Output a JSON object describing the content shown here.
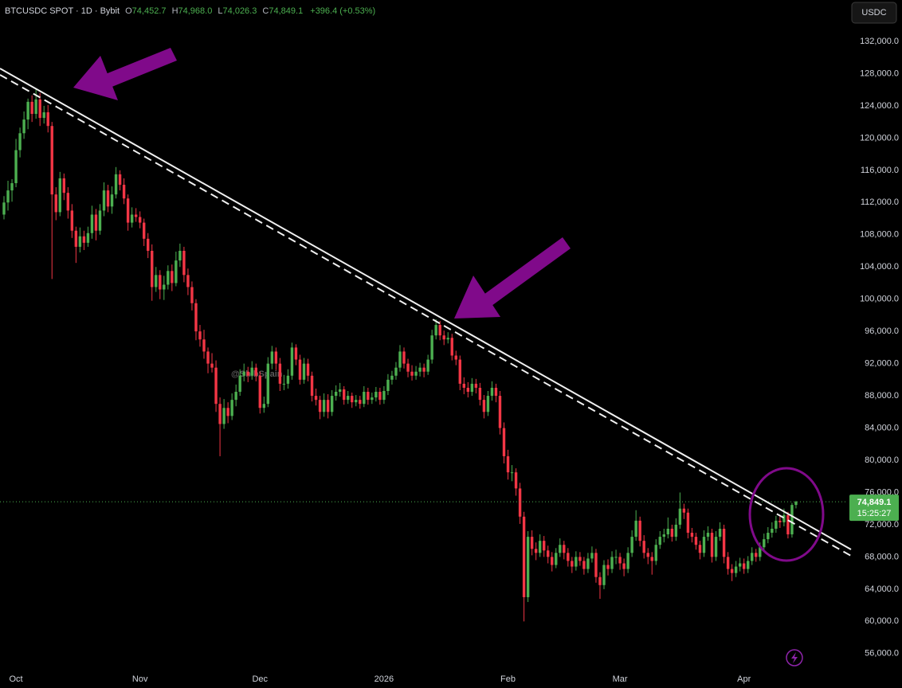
{
  "chart_data": {
    "type": "candlestick",
    "header": {
      "symbol": "BTCUSDC SPOT · 1D · Bybit",
      "o_label": "O",
      "o": "74,452.7",
      "h_label": "H",
      "h": "74,968.0",
      "l_label": "L",
      "l": "74,026.3",
      "c_label": "C",
      "c": "74,849.1",
      "change": "+396.4 (+0.53%)"
    },
    "currency": "USDC",
    "watermark": "@ShibSpain",
    "countdown": "15:25:27",
    "last_price": {
      "value": 74849.1,
      "label": "74,849.1"
    },
    "up_color": "#4caf50",
    "down_color": "#f23645",
    "grid": false,
    "ylim": [
      54100,
      137140
    ],
    "yticks": [
      {
        "value": 56000,
        "label": "56,000.0"
      },
      {
        "value": 60000,
        "label": "60,000.0"
      },
      {
        "value": 64000,
        "label": "64,000.0"
      },
      {
        "value": 68000,
        "label": "68,000.0"
      },
      {
        "value": 72000,
        "label": "72,000.0"
      },
      {
        "value": 76000,
        "label": "76,000.0"
      },
      {
        "value": 80000,
        "label": "80,000.0"
      },
      {
        "value": 84000,
        "label": "84,000.0"
      },
      {
        "value": 88000,
        "label": "88,000.0"
      },
      {
        "value": 92000,
        "label": "92,000.0"
      },
      {
        "value": 96000,
        "label": "96,000.0"
      },
      {
        "value": 100000,
        "label": "100,000.0"
      },
      {
        "value": 104000,
        "label": "104,000.0"
      },
      {
        "value": 108000,
        "label": "108,000.0"
      },
      {
        "value": 112000,
        "label": "112,000.0"
      },
      {
        "value": 116000,
        "label": "116,000.0"
      },
      {
        "value": 120000,
        "label": "120,000.0"
      },
      {
        "value": 124000,
        "label": "124,000.0"
      },
      {
        "value": 128000,
        "label": "128,000.0"
      },
      {
        "value": 132000,
        "label": "132,000.0"
      }
    ],
    "categories": [
      null,
      null,
      null,
      "Oct",
      null,
      null,
      null,
      null,
      null,
      null,
      null,
      null,
      null,
      null,
      null,
      null,
      null,
      null,
      null,
      null,
      null,
      null,
      null,
      null,
      null,
      null,
      null,
      null,
      null,
      null,
      null,
      null,
      null,
      null,
      "Nov",
      null,
      null,
      null,
      null,
      null,
      null,
      null,
      null,
      null,
      null,
      null,
      null,
      null,
      null,
      null,
      null,
      null,
      null,
      null,
      null,
      null,
      null,
      null,
      null,
      null,
      null,
      null,
      null,
      null,
      "Dec",
      null,
      null,
      null,
      null,
      null,
      null,
      null,
      null,
      null,
      null,
      null,
      null,
      null,
      null,
      null,
      null,
      null,
      null,
      null,
      null,
      null,
      null,
      null,
      null,
      null,
      null,
      null,
      null,
      null,
      null,
      "2026",
      null,
      null,
      null,
      null,
      null,
      null,
      null,
      null,
      null,
      null,
      null,
      null,
      null,
      null,
      null,
      null,
      null,
      null,
      null,
      null,
      null,
      null,
      null,
      null,
      null,
      null,
      null,
      null,
      null,
      null,
      "Feb",
      null,
      null,
      null,
      null,
      null,
      null,
      null,
      null,
      null,
      null,
      null,
      null,
      null,
      null,
      null,
      null,
      null,
      null,
      null,
      null,
      null,
      null,
      null,
      null,
      null,
      null,
      null,
      "Mar",
      null,
      null,
      null,
      null,
      null,
      null,
      null,
      null,
      null,
      null,
      null,
      null,
      null,
      null,
      null,
      null,
      null,
      null,
      null,
      null,
      null,
      null,
      null,
      null,
      null,
      null,
      null,
      null,
      null,
      null,
      "Apr",
      null,
      null,
      null,
      null,
      null,
      null,
      null,
      null,
      null,
      null,
      null,
      null,
      null
    ],
    "open": [
      110500,
      112000,
      113500,
      114400,
      118500,
      120600,
      122300,
      124500,
      123000,
      124800,
      122500,
      123200,
      121500,
      113000,
      110800,
      115000,
      113200,
      111000,
      108500,
      106500,
      107800,
      107000,
      108200,
      110500,
      108500,
      111000,
      113500,
      111500,
      113000,
      115500,
      114200,
      112500,
      109500,
      110500,
      110200,
      109500,
      107500,
      106000,
      101500,
      103000,
      101200,
      101800,
      103500,
      102000,
      104800,
      106000,
      103000,
      101500,
      99500,
      96000,
      95000,
      93500,
      92000,
      91500,
      87000,
      84500,
      86500,
      85500,
      87500,
      88500,
      90500,
      91000,
      90500,
      91500,
      90500,
      86500,
      87000,
      92000,
      93500,
      92000,
      89500,
      89500,
      90500,
      94000,
      92500,
      90000,
      92000,
      90500,
      88000,
      87500,
      86000,
      87500,
      86000,
      88000,
      88500,
      88800,
      87500,
      88000,
      87200,
      87500,
      87000,
      88500,
      87500,
      87800,
      88500,
      87500,
      88600,
      90000,
      90500,
      91500,
      93500,
      92000,
      91000,
      90500,
      91000,
      91500,
      91000,
      92500,
      95500,
      96800,
      95500,
      95000,
      95200,
      93000,
      92500,
      89500,
      89000,
      88500,
      89500,
      89000,
      87500,
      86000,
      88000,
      89000,
      88000,
      84000,
      80500,
      78500,
      78500,
      76500,
      73000,
      63000,
      70500,
      69000,
      68500,
      70000,
      68800,
      68000,
      67000,
      68500,
      69500,
      68500,
      67500,
      66800,
      68000,
      67500,
      66500,
      67800,
      68500,
      65500,
      64500,
      67000,
      66500,
      68000,
      68000,
      67200,
      66500,
      68500,
      70500,
      72500,
      70000,
      68500,
      68000,
      67500,
      69500,
      70500,
      70800,
      71500,
      70500,
      72000,
      74000,
      73500,
      71000,
      70500,
      69500,
      68500,
      70500,
      71000,
      68000,
      70500,
      71500,
      68000,
      66500,
      66000,
      66800,
      67200,
      66500,
      67500,
      68500,
      68000,
      69200,
      70200,
      71000,
      71500,
      72500,
      72300,
      73200,
      70800,
      74452.7
    ],
    "high": [
      112800,
      114700,
      114900,
      119900,
      121300,
      123300,
      124900,
      125300,
      126100,
      125600,
      124000,
      124100,
      122000,
      113900,
      115800,
      115600,
      113900,
      111800,
      109000,
      108900,
      108500,
      109000,
      111600,
      111200,
      111800,
      114500,
      114200,
      114000,
      116400,
      116000,
      115000,
      113000,
      111400,
      111300,
      110900,
      110000,
      108200,
      106800,
      104000,
      103600,
      102900,
      104200,
      104300,
      105900,
      106900,
      106500,
      103800,
      102200,
      100000,
      96800,
      96200,
      94000,
      93300,
      92400,
      87800,
      87600,
      87200,
      88300,
      89400,
      91300,
      92000,
      91600,
      92300,
      92000,
      91000,
      87900,
      92800,
      94200,
      94000,
      92700,
      90600,
      91300,
      94600,
      94400,
      93100,
      92700,
      92600,
      91000,
      88900,
      88000,
      88300,
      88200,
      88700,
      89300,
      89600,
      89200,
      88600,
      88400,
      88100,
      88000,
      89200,
      89000,
      88400,
      89100,
      89000,
      89200,
      90700,
      91100,
      92200,
      94300,
      94000,
      92600,
      91800,
      91700,
      92100,
      92000,
      93100,
      96200,
      97500,
      97300,
      96100,
      95900,
      95700,
      93600,
      93000,
      90300,
      89700,
      90200,
      90100,
      89600,
      88100,
      88600,
      89800,
      89500,
      88600,
      84700,
      81300,
      79400,
      79000,
      77200,
      73600,
      71200,
      71300,
      69800,
      70800,
      70600,
      69400,
      68600,
      69100,
      70300,
      70000,
      69100,
      68000,
      68700,
      68600,
      68000,
      68500,
      69300,
      69000,
      66100,
      67600,
      67700,
      68700,
      68900,
      68500,
      67800,
      69200,
      71300,
      73800,
      73000,
      70700,
      69100,
      68600,
      70200,
      71200,
      71500,
      72900,
      72000,
      72800,
      76000,
      74600,
      74000,
      71600,
      71000,
      70000,
      71300,
      71800,
      71500,
      71200,
      72300,
      72000,
      68600,
      67100,
      67500,
      67900,
      67800,
      68100,
      69200,
      69000,
      69800,
      70900,
      71700,
      72300,
      73100,
      73200,
      74000,
      73600,
      74700,
      74968
    ],
    "low": [
      109900,
      111000,
      112100,
      113900,
      117600,
      119900,
      121100,
      122000,
      122400,
      121500,
      121800,
      120700,
      102500,
      109800,
      110300,
      112300,
      110000,
      107600,
      104500,
      105800,
      106100,
      106500,
      107500,
      107300,
      108000,
      110300,
      110800,
      110600,
      112500,
      113500,
      111800,
      108500,
      108900,
      109600,
      108800,
      106600,
      105100,
      99800,
      100900,
      100000,
      99900,
      101200,
      101000,
      101600,
      104000,
      102100,
      100500,
      98600,
      94900,
      94100,
      92600,
      90800,
      90900,
      86000,
      80500,
      83900,
      84600,
      85000,
      86700,
      88000,
      89800,
      89700,
      90000,
      89800,
      85800,
      85900,
      86600,
      91300,
      91200,
      88600,
      88700,
      88900,
      90000,
      91800,
      89400,
      89500,
      89800,
      87300,
      86800,
      85100,
      85400,
      85200,
      85500,
      87400,
      87900,
      86900,
      87000,
      86500,
      86700,
      86400,
      86600,
      86900,
      87000,
      87300,
      86900,
      87000,
      88100,
      89400,
      90000,
      91000,
      91400,
      90300,
      89900,
      90000,
      90400,
      90300,
      90600,
      92000,
      95000,
      94900,
      94300,
      94500,
      92400,
      91800,
      88700,
      88200,
      87800,
      88000,
      88300,
      86800,
      85200,
      85500,
      87400,
      87200,
      83200,
      79600,
      77600,
      77400,
      75600,
      72100,
      60000,
      62400,
      68200,
      67600,
      68000,
      68000,
      67200,
      66200,
      66600,
      68000,
      67700,
      66800,
      66000,
      66300,
      66900,
      65800,
      66000,
      67300,
      64800,
      62800,
      64000,
      65700,
      66000,
      67100,
      66400,
      65600,
      66000,
      68000,
      70000,
      69300,
      67800,
      67100,
      65800,
      67000,
      69000,
      69800,
      70300,
      69900,
      70000,
      71500,
      72700,
      70300,
      69800,
      68900,
      67700,
      68000,
      70000,
      67300,
      67500,
      70000,
      67200,
      65800,
      65000,
      65500,
      66200,
      65900,
      66000,
      67000,
      67400,
      67500,
      68700,
      69700,
      70400,
      71000,
      71600,
      71800,
      70300,
      70400,
      74026.3
    ],
    "close": [
      112000,
      113500,
      114400,
      118500,
      120600,
      122300,
      124500,
      123000,
      124800,
      122500,
      123200,
      121500,
      113000,
      110800,
      115000,
      113200,
      111000,
      108500,
      106500,
      107800,
      107000,
      108200,
      110500,
      108500,
      111000,
      113500,
      111500,
      113000,
      115500,
      114200,
      112500,
      109500,
      110500,
      110200,
      109500,
      107500,
      106000,
      101500,
      103000,
      101200,
      101800,
      103500,
      102000,
      104800,
      106000,
      103000,
      101500,
      99500,
      96000,
      95000,
      93500,
      92000,
      91500,
      87000,
      84500,
      86500,
      85500,
      87500,
      88500,
      90500,
      91000,
      90500,
      91500,
      90500,
      86500,
      87000,
      92000,
      93500,
      92000,
      89500,
      89500,
      90500,
      94000,
      92500,
      90000,
      92000,
      90500,
      88000,
      87500,
      86000,
      87500,
      86000,
      88000,
      88500,
      88800,
      87500,
      88000,
      87200,
      87500,
      87000,
      88500,
      87500,
      87800,
      88500,
      87500,
      88600,
      90000,
      90500,
      91500,
      93500,
      92000,
      91000,
      90500,
      91000,
      91500,
      91000,
      92500,
      95500,
      96800,
      95500,
      95000,
      95200,
      93000,
      92500,
      89500,
      89000,
      88500,
      89500,
      89000,
      87500,
      86000,
      88000,
      89000,
      88000,
      84000,
      80500,
      78500,
      78500,
      76500,
      73000,
      63000,
      70500,
      69000,
      68500,
      70000,
      68800,
      68000,
      67000,
      68500,
      69500,
      68500,
      67500,
      66800,
      68000,
      67500,
      66500,
      67800,
      68500,
      65500,
      64500,
      67000,
      66500,
      68000,
      68000,
      67200,
      66500,
      68500,
      70500,
      72500,
      70000,
      68500,
      68000,
      67500,
      69500,
      70500,
      70800,
      71500,
      70500,
      72000,
      74000,
      73500,
      71000,
      70500,
      69500,
      68500,
      70500,
      71000,
      68000,
      70500,
      71500,
      68000,
      66500,
      66000,
      66800,
      67200,
      66500,
      67500,
      68500,
      68000,
      69200,
      70200,
      71000,
      71500,
      72500,
      72300,
      73200,
      70800,
      74452.7,
      74849.1
    ]
  }
}
